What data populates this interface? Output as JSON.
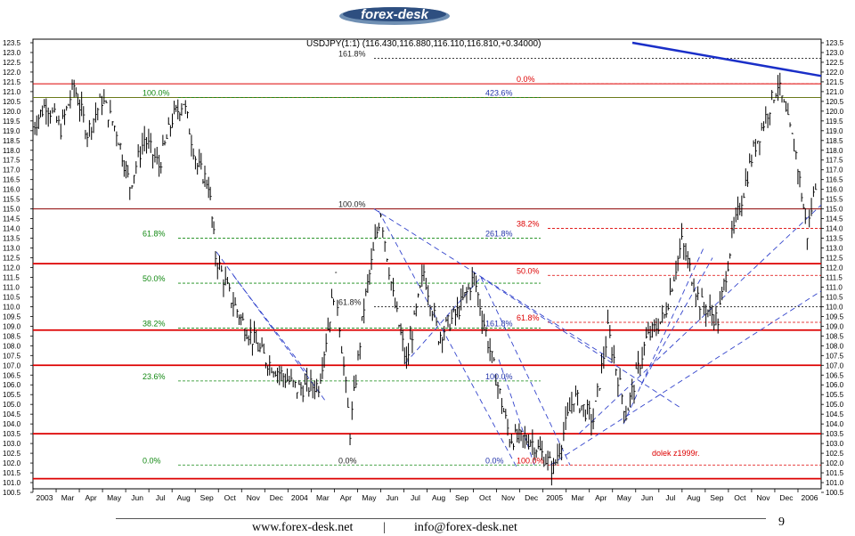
{
  "brand": {
    "logo_text": "forex-desk"
  },
  "footer": {
    "site": "www.forex-desk.net",
    "separator": "|",
    "email": "info@forex-desk.net",
    "page": "9"
  },
  "chart_data": {
    "type": "ohlc",
    "title": "USDJPY(1:1) (116.430,116.880,116.110,116.810,+0.34000)",
    "ylim": [
      100.5,
      123.5
    ],
    "y_ticks": [
      "123.5",
      "123.0",
      "122.5",
      "122.0",
      "121.5",
      "121.0",
      "120.5",
      "120.0",
      "119.5",
      "119.0",
      "118.5",
      "118.0",
      "117.5",
      "117.0",
      "116.5",
      "116.0",
      "115.5",
      "115.0",
      "114.5",
      "114.0",
      "113.5",
      "113.0",
      "112.5",
      "112.0",
      "111.5",
      "111.0",
      "110.5",
      "110.0",
      "109.5",
      "109.0",
      "108.5",
      "108.0",
      "107.5",
      "107.0",
      "106.5",
      "106.0",
      "105.5",
      "105.0",
      "104.5",
      "104.0",
      "103.5",
      "103.0",
      "102.5",
      "102.0",
      "101.5",
      "101.0",
      "100.5"
    ],
    "x_ticks": [
      "2003",
      "Mar",
      "Apr",
      "May",
      "Jun",
      "Jul",
      "Aug",
      "Sep",
      "Oct",
      "Nov",
      "Dec",
      "2004",
      "Mar",
      "Apr",
      "May",
      "Jun",
      "Jul",
      "Aug",
      "Sep",
      "Oct",
      "Nov",
      "Dec",
      "2005",
      "Mar",
      "Apr",
      "May",
      "Jun",
      "Jul",
      "Aug",
      "Sep",
      "Oct",
      "Nov",
      "Dec",
      "2006"
    ],
    "price_path": [
      [
        "2003-01-01",
        119.2
      ],
      [
        "2003-01-20",
        120.4
      ],
      [
        "2003-02-10",
        119.1
      ],
      [
        "2003-03-01",
        121.3
      ],
      [
        "2003-03-20",
        118.9
      ],
      [
        "2003-04-10",
        120.6
      ],
      [
        "2003-05-01",
        119.0
      ],
      [
        "2003-05-20",
        116.2
      ],
      [
        "2003-06-10",
        118.6
      ],
      [
        "2003-07-01",
        117.2
      ],
      [
        "2003-07-20",
        119.6
      ],
      [
        "2003-08-05",
        120.5
      ],
      [
        "2003-08-25",
        117.2
      ],
      [
        "2003-09-10",
        116.3
      ],
      [
        "2003-09-20",
        112.6
      ],
      [
        "2003-10-10",
        110.6
      ],
      [
        "2003-11-01",
        109.0
      ],
      [
        "2003-12-01",
        107.3
      ],
      [
        "2004-01-15",
        105.8
      ],
      [
        "2004-02-15",
        106.0
      ],
      [
        "2004-03-10",
        111.3
      ],
      [
        "2004-03-31",
        103.6
      ],
      [
        "2004-04-20",
        110.0
      ],
      [
        "2004-05-14",
        114.9
      ],
      [
        "2004-06-01",
        110.5
      ],
      [
        "2004-06-20",
        107.1
      ],
      [
        "2004-07-15",
        111.8
      ],
      [
        "2004-08-05",
        108.5
      ],
      [
        "2004-09-01",
        109.7
      ],
      [
        "2004-09-25",
        111.5
      ],
      [
        "2004-10-15",
        108.2
      ],
      [
        "2004-11-15",
        103.3
      ],
      [
        "2004-12-15",
        103.2
      ],
      [
        "2005-01-17",
        101.7
      ],
      [
        "2005-02-15",
        105.4
      ],
      [
        "2005-03-15",
        104.2
      ],
      [
        "2005-04-05",
        108.8
      ],
      [
        "2005-05-01",
        104.5
      ],
      [
        "2005-05-30",
        108.3
      ],
      [
        "2005-06-25",
        109.5
      ],
      [
        "2005-07-20",
        113.3
      ],
      [
        "2005-08-15",
        110.2
      ],
      [
        "2005-09-10",
        109.3
      ],
      [
        "2005-09-30",
        113.5
      ],
      [
        "2005-10-31",
        118.0
      ],
      [
        "2005-12-05",
        121.4
      ],
      [
        "2005-12-31",
        117.8
      ],
      [
        "2006-01-16",
        113.7
      ],
      [
        "2006-01-31",
        117.0
      ]
    ],
    "horizontal_levels": [
      {
        "y": 121.4,
        "color": "#dd0000",
        "weight": "thin"
      },
      {
        "y": 120.7,
        "color": "#6a7a1a",
        "weight": "thin"
      },
      {
        "y": 115.0,
        "color": "#8b0000",
        "weight": "thin"
      },
      {
        "y": 112.2,
        "color": "#dd0000",
        "weight": "thick"
      },
      {
        "y": 108.8,
        "color": "#dd0000",
        "weight": "thick"
      },
      {
        "y": 107.0,
        "color": "#dd0000",
        "weight": "thick"
      },
      {
        "y": 103.5,
        "color": "#dd0000",
        "weight": "thick"
      },
      {
        "y": 101.2,
        "color": "#dd0000",
        "weight": "thick"
      }
    ],
    "fib_left": {
      "color": "#118811",
      "labels": [
        {
          "text": "100.0%",
          "y": 120.7
        },
        {
          "text": "61.8%",
          "y": 113.5
        },
        {
          "text": "50.0%",
          "y": 111.2
        },
        {
          "text": "38.2%",
          "y": 108.9
        },
        {
          "text": "23.6%",
          "y": 106.2
        },
        {
          "text": "0.0%",
          "y": 101.9
        }
      ]
    },
    "fib_mid": {
      "color": "#222222",
      "labels": [
        {
          "text": "161.8%",
          "y": 122.7
        },
        {
          "text": "100.0%",
          "y": 115.0
        },
        {
          "text": "61.8%",
          "y": 110.0
        },
        {
          "text": "0.0%",
          "y": 101.9
        }
      ]
    },
    "fib_blue": {
      "color": "#2233aa",
      "labels": [
        {
          "text": "423.6%",
          "y": 120.7
        },
        {
          "text": "261.8%",
          "y": 113.5
        },
        {
          "text": "161.8%",
          "y": 108.9
        },
        {
          "text": "100.0%",
          "y": 106.2
        },
        {
          "text": "0.0%",
          "y": 101.9
        }
      ]
    },
    "fib_red": {
      "color": "#dd0000",
      "labels": [
        {
          "text": "0.0%",
          "y": 121.4
        },
        {
          "text": "38.2%",
          "y": 114.0
        },
        {
          "text": "50.0%",
          "y": 111.6
        },
        {
          "text": "61.8%",
          "y": 109.2
        },
        {
          "text": "100.0%",
          "y": 101.9
        }
      ]
    },
    "annotation": {
      "text": "dolek z1999r.",
      "color": "#dd0000"
    }
  }
}
